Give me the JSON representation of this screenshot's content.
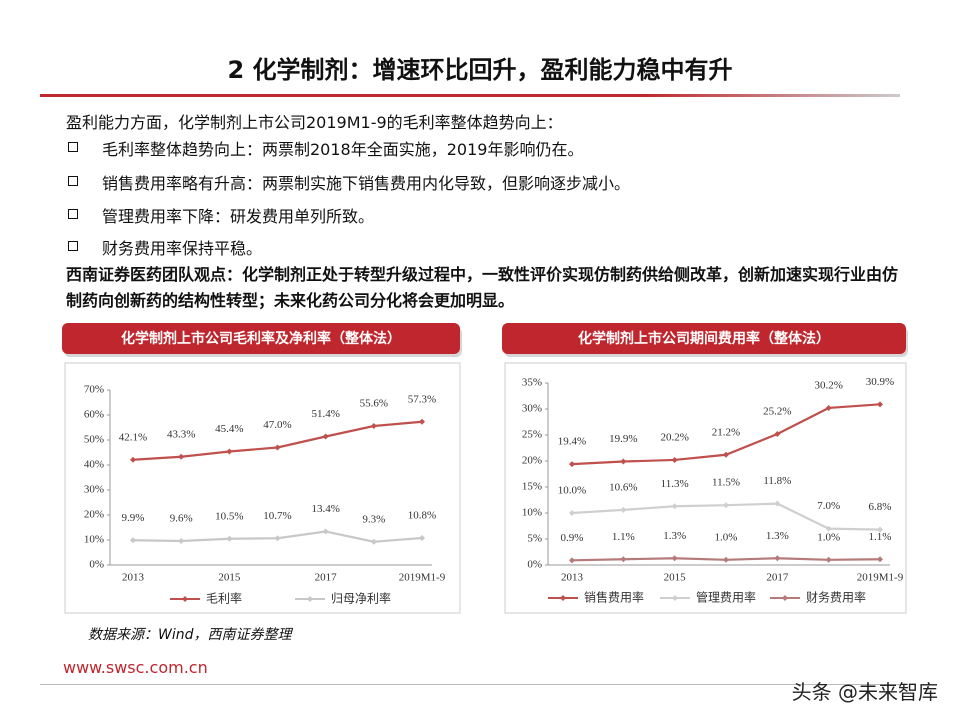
{
  "header": {
    "title": "2 化学制剂：增速环比回升，盈利能力稳中有升"
  },
  "intro": "盈利能力方面，化学制剂上市公司2019M1-9的毛利率整体趋势向上：",
  "bullets": [
    "毛利率整体趋势向上：两票制2018年全面实施，2019年影响仍在。",
    "销售费用率略有升高：两票制实施下销售费用内化导致，但影响逐步减小。",
    "管理费用率下降：研发费用单列所致。",
    "财务费用率保持平稳。"
  ],
  "viewpoint": "西南证券医药团队观点：化学制剂正处于转型升级过程中，一致性评价实现仿制药供给侧改革，创新加速实现行业由仿制药向创新药的结构性转型；未来化药公司分化将会更加明显。",
  "source": "数据来源：Wind，西南证券整理",
  "footer": {
    "url": "www.swsc.com.cn",
    "watermark": "头条 @未来智库"
  },
  "chart_data": [
    {
      "type": "line",
      "title": "化学制剂上市公司毛利率及净利率（整体法）",
      "categories": [
        "2013",
        null,
        "2015",
        null,
        "2017",
        null,
        "2019M1-9"
      ],
      "ylim": [
        0,
        70
      ],
      "yticks": [
        {
          "value": 0,
          "label": "0%"
        },
        {
          "value": 10,
          "label": "10%"
        },
        {
          "value": 20,
          "label": "20%"
        },
        {
          "value": 30,
          "label": "30%"
        },
        {
          "value": 40,
          "label": "40%"
        },
        {
          "value": 50,
          "label": "50%"
        },
        {
          "value": 60,
          "label": "60%"
        },
        {
          "value": 70,
          "label": "70%"
        }
      ],
      "series": [
        {
          "name": "毛利率",
          "color": "#c0504d",
          "values": [
            42.1,
            43.3,
            45.4,
            47.0,
            51.4,
            55.6,
            57.3
          ],
          "value_labels": [
            "42.1%",
            "43.3%",
            "45.4%",
            "47.0%",
            "51.4%",
            "55.6%",
            "57.3%"
          ]
        },
        {
          "name": "归母净利率",
          "color": "#c8c8c8",
          "values": [
            9.9,
            9.6,
            10.5,
            10.7,
            13.4,
            9.3,
            10.8
          ],
          "value_labels": [
            "9.9%",
            "9.6%",
            "10.5%",
            "10.7%",
            "13.4%",
            "9.3%",
            "10.8%"
          ]
        }
      ]
    },
    {
      "type": "line",
      "title": "化学制剂上市公司期间费用率（整体法）",
      "categories": [
        "2013",
        null,
        "2015",
        null,
        "2017",
        null,
        "2019M1-9"
      ],
      "ylim": [
        0,
        35
      ],
      "yticks": [
        {
          "value": 0,
          "label": "0%"
        },
        {
          "value": 5,
          "label": "5%"
        },
        {
          "value": 10,
          "label": "10%"
        },
        {
          "value": 15,
          "label": "15%"
        },
        {
          "value": 20,
          "label": "20%"
        },
        {
          "value": 25,
          "label": "25%"
        },
        {
          "value": 30,
          "label": "30%"
        },
        {
          "value": 35,
          "label": "35%"
        }
      ],
      "series": [
        {
          "name": "销售费用率",
          "color": "#c0504d",
          "values": [
            19.4,
            19.9,
            20.2,
            21.2,
            25.2,
            30.2,
            30.9
          ],
          "value_labels": [
            "19.4%",
            "19.9%",
            "20.2%",
            "21.2%",
            "25.2%",
            "30.2%",
            "30.9%"
          ]
        },
        {
          "name": "管理费用率",
          "color": "#cfcfcf",
          "values": [
            10.0,
            10.6,
            11.3,
            11.5,
            11.8,
            7.0,
            6.8
          ],
          "value_labels": [
            "10.0%",
            "10.6%",
            "11.3%",
            "11.5%",
            "11.8%",
            "7.0%",
            "6.8%"
          ]
        },
        {
          "name": "财务费用率",
          "color": "#b57a7a",
          "values": [
            0.9,
            1.1,
            1.3,
            1.0,
            1.3,
            1.0,
            1.1
          ],
          "value_labels": [
            "0.9%",
            "1.1%",
            "1.3%",
            "1.0%",
            "1.3%",
            "1.0%",
            "1.1%"
          ]
        }
      ]
    }
  ]
}
